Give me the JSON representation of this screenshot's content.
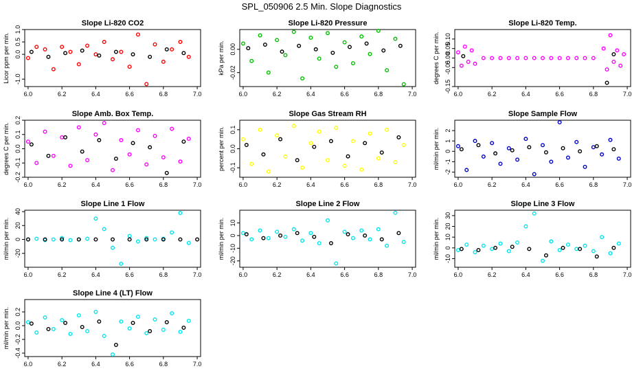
{
  "title": "SPL_050906  2.5 Min. Slope Diagnostics",
  "chart_data": [
    {
      "type": "scatter",
      "title": "Slope Li-820 CO2",
      "xlabel": "",
      "ylabel": "Licor ppm per min.",
      "xlim": [
        5.98,
        7.02
      ],
      "ylim": [
        -1.3,
        1.0
      ],
      "xticks": [
        "6.0",
        "6.2",
        "6.4",
        "6.6",
        "6.8",
        "7.0"
      ],
      "yticks": [
        "-1.0",
        "0.0",
        "0.5",
        "1.0"
      ],
      "series": [
        {
          "color": "#ff0000",
          "x": [
            6.0,
            6.05,
            6.1,
            6.15,
            6.2,
            6.25,
            6.3,
            6.35,
            6.4,
            6.45,
            6.5,
            6.55,
            6.6,
            6.65,
            6.7,
            6.75,
            6.8,
            6.85,
            6.9,
            6.95
          ],
          "y": [
            -0.15,
            0.3,
            0.2,
            -0.6,
            0.3,
            0.1,
            -0.4,
            0.35,
            0.0,
            0.5,
            -0.2,
            0.1,
            -0.5,
            0.8,
            -1.2,
            0.4,
            -0.3,
            0.2,
            0.5,
            -0.1
          ]
        },
        {
          "color": "#000000",
          "x": [
            6.02,
            6.12,
            6.22,
            6.32,
            6.42,
            6.52,
            6.62,
            6.72,
            6.82,
            6.92
          ],
          "y": [
            0.1,
            -0.1,
            0.05,
            0.15,
            -0.05,
            0.1,
            0.0,
            -0.1,
            0.2,
            0.05
          ]
        }
      ]
    },
    {
      "type": "scatter",
      "title": "Slope Li-820 Pressure",
      "xlabel": "",
      "ylabel": "kPa per min.",
      "xlim": [
        5.98,
        7.02
      ],
      "ylim": [
        -0.032,
        0.017
      ],
      "xticks": [
        "6.0",
        "6.2",
        "6.4",
        "6.6",
        "6.8",
        "7.0"
      ],
      "yticks": [
        "-0.02",
        "0.00"
      ],
      "series": [
        {
          "color": "#00c000",
          "x": [
            6.0,
            6.05,
            6.1,
            6.15,
            6.2,
            6.25,
            6.3,
            6.35,
            6.4,
            6.45,
            6.5,
            6.55,
            6.6,
            6.65,
            6.7,
            6.75,
            6.8,
            6.85,
            6.9,
            6.95
          ],
          "y": [
            0.005,
            -0.01,
            0.012,
            -0.02,
            0.008,
            -0.005,
            0.015,
            -0.025,
            0.01,
            -0.008,
            0.014,
            -0.015,
            0.006,
            -0.012,
            0.011,
            -0.004,
            0.016,
            -0.018,
            0.009,
            -0.03
          ]
        },
        {
          "color": "#000000",
          "x": [
            6.03,
            6.13,
            6.23,
            6.33,
            6.43,
            6.53,
            6.63,
            6.73,
            6.83,
            6.93
          ],
          "y": [
            0.001,
            0.004,
            -0.002,
            0.003,
            0.0,
            -0.003,
            0.002,
            0.005,
            -0.001,
            0.003
          ]
        }
      ]
    },
    {
      "type": "scatter",
      "title": "Slope Li-820 Temp.",
      "xlabel": "",
      "ylabel": "degrees C per min.",
      "xlim": [
        5.98,
        7.02
      ],
      "ylim": [
        -0.15,
        0.15
      ],
      "xticks": [
        "6.0",
        "6.2",
        "6.4",
        "6.6",
        "6.8",
        "7.0"
      ],
      "yticks": [
        "-0.15",
        "-0.05",
        "0.00",
        "0.05",
        "0.10"
      ],
      "series": [
        {
          "color": "#ff00ff",
          "x": [
            6.0,
            6.02,
            6.04,
            6.06,
            6.08,
            6.1,
            6.86,
            6.88,
            6.9,
            6.92,
            6.94,
            6.96,
            6.98
          ],
          "y": [
            0.03,
            -0.04,
            0.06,
            -0.02,
            0.04,
            -0.03,
            0.05,
            -0.06,
            0.12,
            -0.02,
            0.04,
            -0.04,
            0.02
          ]
        },
        {
          "color": "#ff00ff",
          "x": [
            6.15,
            6.2,
            6.25,
            6.3,
            6.35,
            6.4,
            6.45,
            6.5,
            6.55,
            6.6,
            6.65,
            6.7,
            6.75,
            6.8
          ],
          "y": [
            0,
            0,
            0,
            0,
            0,
            0,
            0,
            0,
            0,
            0,
            0,
            0,
            0,
            0
          ]
        },
        {
          "color": "#000000",
          "x": [
            6.03,
            6.88,
            6.92
          ],
          "y": [
            0.01,
            -0.13,
            0.02
          ]
        }
      ]
    },
    {
      "type": "scatter",
      "title": "Slope Amb. Box Temp.",
      "xlabel": "",
      "ylabel": "degrees C per min.",
      "xlim": [
        5.98,
        7.02
      ],
      "ylim": [
        -0.2,
        0.2
      ],
      "xticks": [
        "6.0",
        "6.2",
        "6.4",
        "6.6",
        "6.8",
        "7.0"
      ],
      "yticks": [
        "-0.2",
        "-0.1",
        "0.0",
        "0.1",
        "0.2"
      ],
      "series": [
        {
          "color": "#ff00ff",
          "x": [
            6.0,
            6.05,
            6.1,
            6.15,
            6.2,
            6.25,
            6.3,
            6.35,
            6.4,
            6.45,
            6.5,
            6.55,
            6.6,
            6.65,
            6.7,
            6.75,
            6.8,
            6.85,
            6.9,
            6.95
          ],
          "y": [
            0.05,
            -0.1,
            0.12,
            -0.05,
            0.08,
            -0.12,
            0.15,
            -0.08,
            0.1,
            0.18,
            -0.15,
            0.06,
            -0.04,
            0.13,
            -0.11,
            0.09,
            -0.06,
            0.14,
            -0.09,
            0.07
          ]
        },
        {
          "color": "#000000",
          "x": [
            6.02,
            6.12,
            6.22,
            6.32,
            6.42,
            6.52,
            6.62,
            6.72,
            6.82,
            6.92
          ],
          "y": [
            0.03,
            -0.05,
            0.08,
            -0.02,
            0.06,
            -0.07,
            0.04,
            0.01,
            -0.17,
            0.05
          ]
        }
      ]
    },
    {
      "type": "scatter",
      "title": "Slope Gas Stream RH",
      "xlabel": "",
      "ylabel": "percent per min.",
      "xlim": [
        5.98,
        7.02
      ],
      "ylim": [
        -0.15,
        0.15
      ],
      "xticks": [
        "6.0",
        "6.2",
        "6.4",
        "6.6",
        "6.8",
        "7.0"
      ],
      "yticks": [
        "-0.1",
        "0.0",
        "0.1"
      ],
      "series": [
        {
          "color": "#ffff00",
          "x": [
            6.0,
            6.05,
            6.1,
            6.15,
            6.2,
            6.25,
            6.3,
            6.35,
            6.4,
            6.45,
            6.5,
            6.55,
            6.6,
            6.65,
            6.7,
            6.75,
            6.8,
            6.85,
            6.9,
            6.95
          ],
          "y": [
            0.05,
            -0.08,
            0.1,
            -0.12,
            0.07,
            -0.04,
            0.12,
            -0.1,
            0.03,
            0.09,
            -0.06,
            0.11,
            -0.09,
            0.04,
            -0.11,
            0.08,
            -0.05,
            0.1,
            -0.07,
            0.02
          ]
        },
        {
          "color": "#000000",
          "x": [
            6.02,
            6.12,
            6.22,
            6.32,
            6.42,
            6.52,
            6.62,
            6.72,
            6.82,
            6.92
          ],
          "y": [
            0.02,
            -0.03,
            0.05,
            -0.06,
            0.01,
            0.04,
            -0.04,
            0.03,
            -0.02,
            0.06
          ]
        }
      ]
    },
    {
      "type": "scatter",
      "title": "Slope Sample Flow",
      "xlabel": "",
      "ylabel": "ml/min per min.",
      "xlim": [
        5.98,
        7.02
      ],
      "ylim": [
        -2.5,
        3.0
      ],
      "xticks": [
        "6.0",
        "6.2",
        "6.4",
        "6.6",
        "6.8",
        "7.0"
      ],
      "yticks": [
        "-2",
        "-1",
        "0",
        "1",
        "2"
      ],
      "series": [
        {
          "color": "#0000cc",
          "x": [
            6.0,
            6.05,
            6.1,
            6.15,
            6.2,
            6.25,
            6.3,
            6.35,
            6.4,
            6.45,
            6.5,
            6.55,
            6.6,
            6.65,
            6.7,
            6.75,
            6.8,
            6.85,
            6.9,
            6.95
          ],
          "y": [
            0.5,
            -1.8,
            1.0,
            -0.5,
            0.8,
            -1.2,
            0.3,
            -0.8,
            1.2,
            -2.2,
            0.6,
            -1.0,
            2.8,
            -0.6,
            0.9,
            -1.5,
            0.4,
            -0.3,
            1.1,
            -0.7
          ]
        },
        {
          "color": "#000000",
          "x": [
            6.02,
            6.12,
            6.22,
            6.32,
            6.42,
            6.52,
            6.62,
            6.72,
            6.82,
            6.92
          ],
          "y": [
            0.2,
            0.6,
            -0.2,
            0.1,
            0.4,
            -0.1,
            0.3,
            0.0,
            0.5,
            0.2
          ]
        }
      ]
    },
    {
      "type": "scatter",
      "title": "Slope Line 1 Flow",
      "xlabel": "",
      "ylabel": "ml/min per min.",
      "xlim": [
        5.98,
        7.02
      ],
      "ylim": [
        -40,
        42
      ],
      "xticks": [
        "6.0",
        "6.2",
        "6.4",
        "6.6",
        "6.8",
        "7.0"
      ],
      "yticks": [
        "-20",
        "0",
        "20",
        "40"
      ],
      "series": [
        {
          "color": "#00e5ee",
          "x": [
            6.0,
            6.05,
            6.1,
            6.15,
            6.2,
            6.25,
            6.3,
            6.35,
            6.4,
            6.45,
            6.5,
            6.55,
            6.6,
            6.65,
            6.7,
            6.75,
            6.8,
            6.85,
            6.9,
            6.95
          ],
          "y": [
            0,
            1,
            -1,
            0,
            2,
            -1,
            0,
            1,
            30,
            15,
            -12,
            -35,
            5,
            -3,
            2,
            0,
            1,
            10,
            38,
            -5
          ]
        },
        {
          "color": "#000000",
          "x": [
            6.0,
            6.1,
            6.2,
            6.3,
            6.4,
            6.5,
            6.6,
            6.7,
            6.8,
            6.9,
            7.0
          ],
          "y": [
            0,
            0,
            0,
            0,
            0,
            0,
            0,
            0,
            0,
            0,
            0
          ]
        }
      ]
    },
    {
      "type": "scatter",
      "title": "Slope Line 2 Flow",
      "xlabel": "",
      "ylabel": "ml/min per min.",
      "xlim": [
        5.98,
        7.02
      ],
      "ylim": [
        -25,
        20
      ],
      "xticks": [
        "6.0",
        "6.2",
        "6.4",
        "6.6",
        "6.8",
        "7.0"
      ],
      "yticks": [
        "-20",
        "-10",
        "0",
        "10"
      ],
      "series": [
        {
          "color": "#00e5ee",
          "x": [
            6.0,
            6.05,
            6.1,
            6.15,
            6.2,
            6.25,
            6.3,
            6.35,
            6.4,
            6.45,
            6.5,
            6.55,
            6.6,
            6.65,
            6.7,
            6.75,
            6.8,
            6.85,
            6.9,
            6.95
          ],
          "y": [
            2,
            -3,
            4,
            -2,
            3,
            -1,
            5,
            -4,
            2,
            -6,
            12,
            -22,
            3,
            -2,
            4,
            -3,
            5,
            -8,
            18,
            -5
          ]
        },
        {
          "color": "#000000",
          "x": [
            6.02,
            6.12,
            6.22,
            6.32,
            6.42,
            6.52,
            6.62,
            6.72,
            6.82,
            6.92
          ],
          "y": [
            1,
            -2,
            0,
            2,
            -1,
            -6,
            1,
            0,
            -3,
            2
          ]
        }
      ]
    },
    {
      "type": "scatter",
      "title": "Slope Line 3 Flow",
      "xlabel": "",
      "ylabel": "ml/min per min.",
      "xlim": [
        5.98,
        7.02
      ],
      "ylim": [
        -18,
        35
      ],
      "xticks": [
        "6.0",
        "6.2",
        "6.4",
        "6.6",
        "6.8",
        "7.0"
      ],
      "yticks": [
        "-10",
        "0",
        "10",
        "20",
        "30"
      ],
      "series": [
        {
          "color": "#00e5ee",
          "x": [
            6.0,
            6.05,
            6.1,
            6.15,
            6.2,
            6.25,
            6.3,
            6.35,
            6.4,
            6.45,
            6.5,
            6.55,
            6.6,
            6.65,
            6.7,
            6.75,
            6.8,
            6.85,
            6.9,
            6.95
          ],
          "y": [
            -2,
            3,
            -4,
            2,
            -1,
            4,
            -3,
            5,
            20,
            32,
            -12,
            6,
            -2,
            3,
            -1,
            2,
            -3,
            10,
            -5,
            4
          ]
        },
        {
          "color": "#000000",
          "x": [
            6.02,
            6.12,
            6.22,
            6.32,
            6.42,
            6.52,
            6.62,
            6.72,
            6.82,
            6.92
          ],
          "y": [
            -1,
            -2,
            0,
            1,
            -1,
            -7,
            0,
            -1,
            -8,
            0
          ]
        }
      ]
    },
    {
      "type": "scatter",
      "title": "Slope Line 4 (LT) Flow",
      "xlabel": "",
      "ylabel": "ml/min per min.",
      "xlim": [
        5.98,
        7.02
      ],
      "ylim": [
        -0.45,
        0.38
      ],
      "xticks": [
        "6.0",
        "6.2",
        "6.4",
        "6.6",
        "6.8",
        "7.0"
      ],
      "yticks": [
        "-0.4",
        "-0.2",
        "0.0",
        "0.2"
      ],
      "series": [
        {
          "color": "#00e5ee",
          "x": [
            6.0,
            6.05,
            6.1,
            6.15,
            6.2,
            6.25,
            6.3,
            6.35,
            6.4,
            6.45,
            6.5,
            6.55,
            6.6,
            6.65,
            6.7,
            6.75,
            6.8,
            6.85,
            6.9,
            6.95
          ],
          "y": [
            0.05,
            -0.1,
            0.12,
            -0.05,
            0.08,
            -0.12,
            0.15,
            -0.08,
            0.2,
            -0.15,
            -0.42,
            0.06,
            -0.04,
            0.13,
            -0.11,
            0.09,
            -0.06,
            0.18,
            -0.09,
            0.07
          ]
        },
        {
          "color": "#000000",
          "x": [
            6.02,
            6.12,
            6.22,
            6.32,
            6.42,
            6.52,
            6.62,
            6.72,
            6.82,
            6.92
          ],
          "y": [
            0.03,
            -0.05,
            0.04,
            -0.02,
            0.06,
            -0.28,
            0.04,
            -0.08,
            0.05,
            -0.03
          ]
        }
      ]
    }
  ]
}
